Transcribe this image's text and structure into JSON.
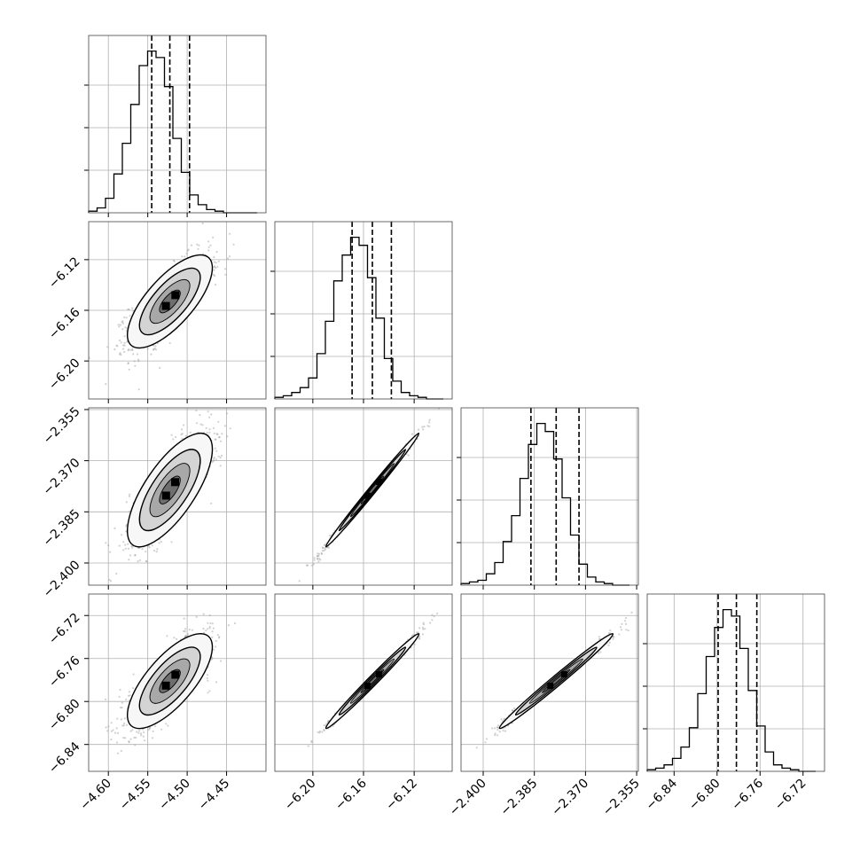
{
  "chart_data": {
    "type": "corner",
    "parameters": [
      {
        "xlim": [
          -4.625,
          -4.4
        ],
        "ticks": [
          -4.6,
          -4.55,
          -4.5,
          -4.45
        ],
        "tick_labels": [
          "−4.60",
          "−4.55",
          "−4.50",
          "−4.45"
        ],
        "quantiles": [
          -4.545,
          -4.522,
          -4.497
        ],
        "mean": -4.522,
        "sd": 0.022
      },
      {
        "xlim": [
          -6.23,
          -6.09
        ],
        "ticks": [
          -6.2,
          -6.16,
          -6.12
        ],
        "tick_labels": [
          "−6.20",
          "−6.16",
          "−6.12"
        ],
        "quantiles": [
          -6.169,
          -6.153,
          -6.138
        ],
        "mean": -6.153,
        "sd": 0.015
      },
      {
        "xlim": [
          -2.4065,
          -2.3545
        ],
        "ticks": [
          -2.4,
          -2.385,
          -2.37,
          -2.355
        ],
        "tick_labels": [
          "−2.400",
          "−2.385",
          "−2.370",
          "−2.355"
        ],
        "quantiles": [
          -2.386,
          -2.3786,
          -2.3719
        ],
        "mean": -2.3786,
        "sd": 0.0068
      },
      {
        "xlim": [
          -6.865,
          -6.7
        ],
        "ticks": [
          -6.84,
          -6.8,
          -6.76,
          -6.72
        ],
        "tick_labels": [
          "−6.84",
          "−6.80",
          "−6.76",
          "−6.72"
        ],
        "quantiles": [
          -6.799,
          -6.782,
          -6.763
        ],
        "mean": -6.781,
        "sd": 0.018
      }
    ],
    "histograms": [
      [
        0.01,
        0.03,
        0.09,
        0.24,
        0.43,
        0.67,
        0.91,
        1.0,
        0.96,
        0.78,
        0.46,
        0.25,
        0.11,
        0.05,
        0.02,
        0.01,
        0.0,
        0.0,
        0.0,
        0.0
      ],
      [
        0.01,
        0.02,
        0.04,
        0.07,
        0.13,
        0.28,
        0.48,
        0.73,
        0.89,
        1.0,
        0.95,
        0.75,
        0.5,
        0.25,
        0.11,
        0.04,
        0.02,
        0.01,
        0.0,
        0.0
      ],
      [
        0.01,
        0.02,
        0.03,
        0.07,
        0.14,
        0.27,
        0.43,
        0.66,
        0.87,
        1.0,
        0.95,
        0.78,
        0.54,
        0.31,
        0.13,
        0.05,
        0.02,
        0.01,
        0.0,
        0.0
      ],
      [
        0.01,
        0.02,
        0.04,
        0.08,
        0.15,
        0.27,
        0.48,
        0.71,
        0.89,
        1.0,
        0.96,
        0.76,
        0.5,
        0.28,
        0.12,
        0.04,
        0.02,
        0.01,
        0.0,
        0.0
      ]
    ],
    "correlations": [
      [
        1.0,
        0.72,
        0.72,
        0.72
      ],
      [
        0.72,
        1.0,
        0.995,
        0.99
      ],
      [
        0.72,
        0.995,
        1.0,
        0.99
      ],
      [
        0.72,
        0.99,
        0.99,
        1.0
      ]
    ],
    "title": "",
    "grid": true,
    "colors": {
      "line": "#000000",
      "grid": "#b0b0b0",
      "scatter": "#9a9a9a"
    }
  }
}
